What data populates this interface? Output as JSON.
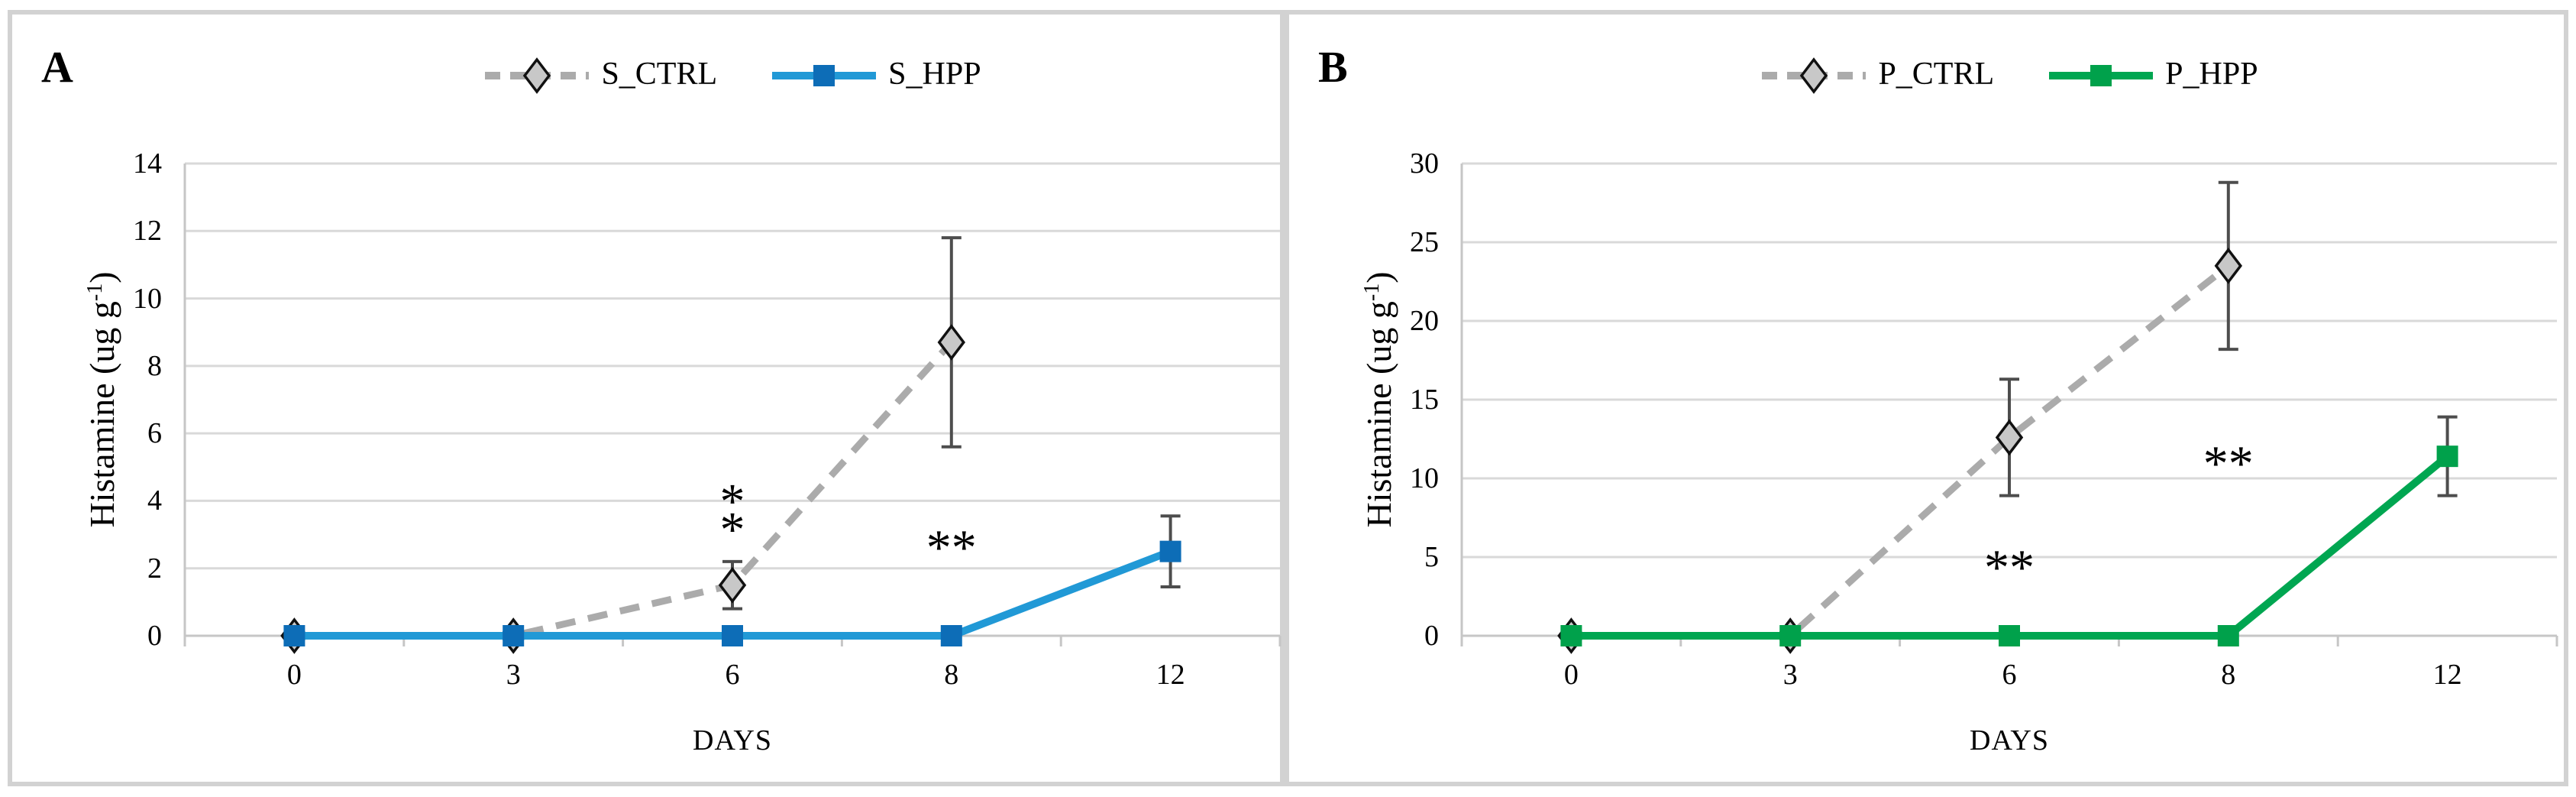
{
  "figure": {
    "panels": [
      {
        "label": "A"
      },
      {
        "label": "B"
      }
    ]
  },
  "style": {
    "grid_color": "#D9D9D9",
    "axis_color": "#C6C6C6",
    "error_bar_color": "#4D4D4D",
    "panel_border_color": "#D2D2D2",
    "text_color": "#000000"
  },
  "chart_data": [
    {
      "type": "line",
      "panel": "A",
      "title": "",
      "categories": [
        0,
        3,
        6,
        8,
        12
      ],
      "xlabel": "DAYS",
      "ylabel": "Histamine (ug g-1)",
      "ylabel_parts": {
        "pre": "Histamine (ug g",
        "sup": "-1",
        "post": ")"
      },
      "ylim": [
        0,
        14
      ],
      "yticks": [
        0,
        2,
        4,
        6,
        8,
        10,
        12,
        14
      ],
      "grid": true,
      "legend_position": "top",
      "series": [
        {
          "name": "S_CTRL",
          "style": "dashed",
          "color": "#ABABAB",
          "marker": "diamond",
          "marker_fill": "#C8C8C8",
          "marker_stroke": "#111111",
          "values": [
            0,
            0,
            1.5,
            8.7,
            null
          ],
          "error": [
            0,
            0,
            0.7,
            3.1,
            0
          ]
        },
        {
          "name": "S_HPP",
          "style": "solid",
          "color": "#2199D6",
          "marker": "square",
          "marker_fill": "#0D6DB7",
          "marker_stroke": "none",
          "values": [
            0,
            0,
            0,
            0,
            2.5
          ],
          "error": [
            0,
            0,
            0,
            0,
            1.05
          ]
        }
      ],
      "annotations": [
        {
          "text": "**",
          "x": 6,
          "y": 3.6,
          "orientation": "vertical"
        },
        {
          "text": "**",
          "x": 8,
          "y": 3.1,
          "orientation": "horizontal"
        }
      ]
    },
    {
      "type": "line",
      "panel": "B",
      "title": "",
      "categories": [
        0,
        3,
        6,
        8,
        12
      ],
      "xlabel": "DAYS",
      "ylabel": "Histamine (ug g-1)",
      "ylabel_parts": {
        "pre": "Histamine (ug g",
        "sup": "-1",
        "post": ")"
      },
      "ylim": [
        0,
        30
      ],
      "yticks": [
        0,
        5,
        10,
        15,
        20,
        25,
        30
      ],
      "grid": true,
      "legend_position": "top",
      "series": [
        {
          "name": "P_CTRL",
          "style": "dashed",
          "color": "#ABABAB",
          "marker": "diamond",
          "marker_fill": "#C8C8C8",
          "marker_stroke": "#111111",
          "values": [
            0,
            0,
            12.6,
            23.5,
            null
          ],
          "error": [
            0,
            0,
            3.7,
            5.3,
            0
          ]
        },
        {
          "name": "P_HPP",
          "style": "solid",
          "color": "#00A651",
          "marker": "square",
          "marker_fill": "#00A14B",
          "marker_stroke": "none",
          "values": [
            0,
            0,
            0,
            0,
            11.4
          ],
          "error": [
            0,
            0,
            0,
            0,
            2.5
          ]
        }
      ],
      "annotations": [
        {
          "text": "**",
          "x": 6,
          "y": 5.4,
          "orientation": "horizontal"
        },
        {
          "text": "**",
          "x": 8,
          "y": 12.0,
          "orientation": "horizontal"
        }
      ]
    }
  ]
}
